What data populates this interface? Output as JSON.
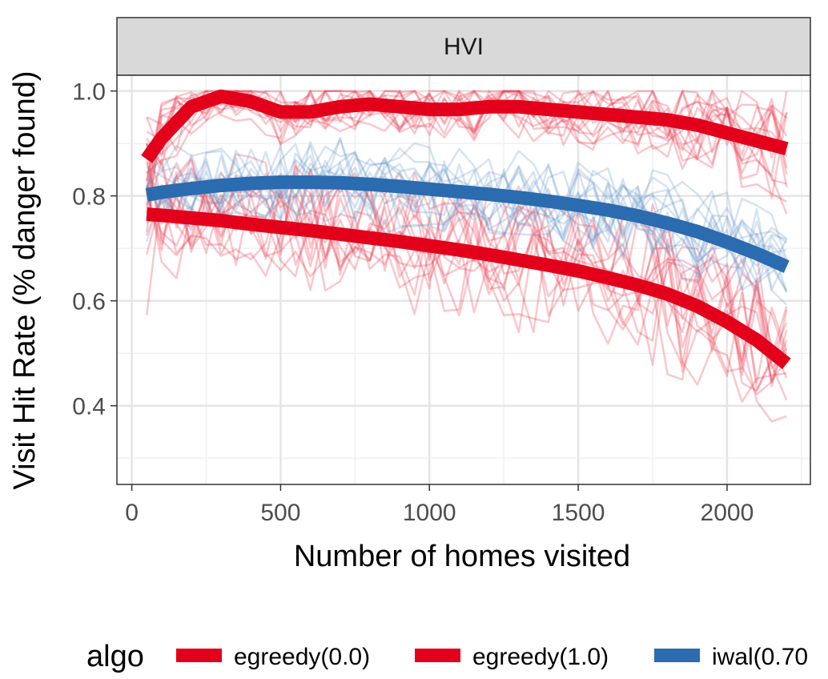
{
  "chart_data": {
    "type": "line",
    "facet_label": "HVI",
    "xlabel": "Number of homes visited",
    "ylabel": "Visit Hit Rate (% danger found)",
    "xlim": [
      -50,
      2280
    ],
    "ylim": [
      0.25,
      1.03
    ],
    "x_ticks": [
      0,
      500,
      1000,
      1500,
      2000
    ],
    "x_tick_labels": [
      "0",
      "500",
      "1000",
      "1500",
      "2000"
    ],
    "y_ticks": [
      0.4,
      0.6,
      0.8,
      1.0
    ],
    "y_tick_labels": [
      "0.4",
      "0.6",
      "0.8",
      "1.0"
    ],
    "grid": true,
    "legend": {
      "title": "algo",
      "position": "bottom",
      "entries": [
        {
          "label": "egreedy(0.0)",
          "color": "#E3001B"
        },
        {
          "label": "egreedy(1.0)",
          "color": "#E3001B"
        },
        {
          "label": "iwal(0.70",
          "color": "#2B6BAF"
        }
      ]
    },
    "colors": {
      "red": "#E3001B",
      "blue": "#2B6BAF",
      "red_thin": "#E8364A",
      "blue_thin": "#6D9CCB"
    },
    "series": [
      {
        "name": "egreedy(0.0)",
        "color": "#E3001B",
        "smooth_x": [
          50,
          100,
          200,
          300,
          400,
          500,
          600,
          700,
          800,
          900,
          1000,
          1100,
          1200,
          1300,
          1400,
          1500,
          1600,
          1700,
          1800,
          1900,
          2000,
          2100,
          2200
        ],
        "smooth_y": [
          0.87,
          0.91,
          0.97,
          0.99,
          0.98,
          0.96,
          0.96,
          0.97,
          0.975,
          0.97,
          0.965,
          0.965,
          0.97,
          0.97,
          0.965,
          0.96,
          0.955,
          0.95,
          0.945,
          0.935,
          0.92,
          0.905,
          0.89
        ],
        "band_upper": [
          0.95,
          0.98,
          1.0,
          1.0,
          1.0,
          1.0,
          1.0,
          1.0,
          1.0,
          1.0,
          1.0,
          1.0,
          1.0,
          1.0,
          1.0,
          1.0,
          1.0,
          1.0,
          1.0,
          1.0,
          1.0,
          1.0,
          1.0
        ],
        "band_lower": [
          0.62,
          0.78,
          0.88,
          0.9,
          0.88,
          0.86,
          0.86,
          0.87,
          0.88,
          0.87,
          0.87,
          0.86,
          0.86,
          0.86,
          0.85,
          0.84,
          0.83,
          0.82,
          0.81,
          0.79,
          0.77,
          0.75,
          0.72
        ]
      },
      {
        "name": "egreedy(1.0)",
        "color": "#E3001B",
        "smooth_x": [
          50,
          100,
          200,
          300,
          400,
          500,
          600,
          700,
          800,
          900,
          1000,
          1100,
          1200,
          1300,
          1400,
          1500,
          1600,
          1700,
          1800,
          1900,
          2000,
          2100,
          2200
        ],
        "smooth_y": [
          0.765,
          0.763,
          0.758,
          0.753,
          0.746,
          0.74,
          0.734,
          0.727,
          0.72,
          0.713,
          0.705,
          0.697,
          0.688,
          0.678,
          0.668,
          0.657,
          0.644,
          0.63,
          0.613,
          0.59,
          0.56,
          0.525,
          0.48
        ],
        "band_upper": [
          0.9,
          0.9,
          0.9,
          0.89,
          0.89,
          0.88,
          0.88,
          0.87,
          0.87,
          0.86,
          0.86,
          0.85,
          0.85,
          0.84,
          0.84,
          0.83,
          0.82,
          0.81,
          0.8,
          0.78,
          0.76,
          0.73,
          0.7
        ],
        "band_lower": [
          0.45,
          0.64,
          0.64,
          0.63,
          0.62,
          0.61,
          0.6,
          0.6,
          0.59,
          0.58,
          0.57,
          0.56,
          0.55,
          0.54,
          0.53,
          0.52,
          0.5,
          0.48,
          0.46,
          0.44,
          0.42,
          0.36,
          0.38
        ]
      },
      {
        "name": "iwal(0.70",
        "color": "#2B6BAF",
        "smooth_x": [
          50,
          100,
          200,
          300,
          400,
          500,
          600,
          700,
          800,
          900,
          1000,
          1100,
          1200,
          1300,
          1400,
          1500,
          1600,
          1700,
          1800,
          1900,
          2000,
          2100,
          2200
        ],
        "smooth_y": [
          0.802,
          0.807,
          0.814,
          0.82,
          0.824,
          0.826,
          0.826,
          0.825,
          0.822,
          0.818,
          0.813,
          0.808,
          0.803,
          0.797,
          0.79,
          0.782,
          0.773,
          0.762,
          0.748,
          0.732,
          0.712,
          0.69,
          0.665
        ],
        "band_upper": [
          0.9,
          0.9,
          0.91,
          0.91,
          0.92,
          0.92,
          0.92,
          0.92,
          0.91,
          0.91,
          0.9,
          0.9,
          0.89,
          0.89,
          0.88,
          0.88,
          0.87,
          0.86,
          0.85,
          0.84,
          0.82,
          0.8,
          0.78
        ],
        "band_lower": [
          0.66,
          0.7,
          0.71,
          0.72,
          0.73,
          0.73,
          0.73,
          0.73,
          0.72,
          0.72,
          0.71,
          0.71,
          0.7,
          0.7,
          0.69,
          0.68,
          0.67,
          0.66,
          0.65,
          0.63,
          0.61,
          0.58,
          0.55
        ]
      }
    ]
  }
}
